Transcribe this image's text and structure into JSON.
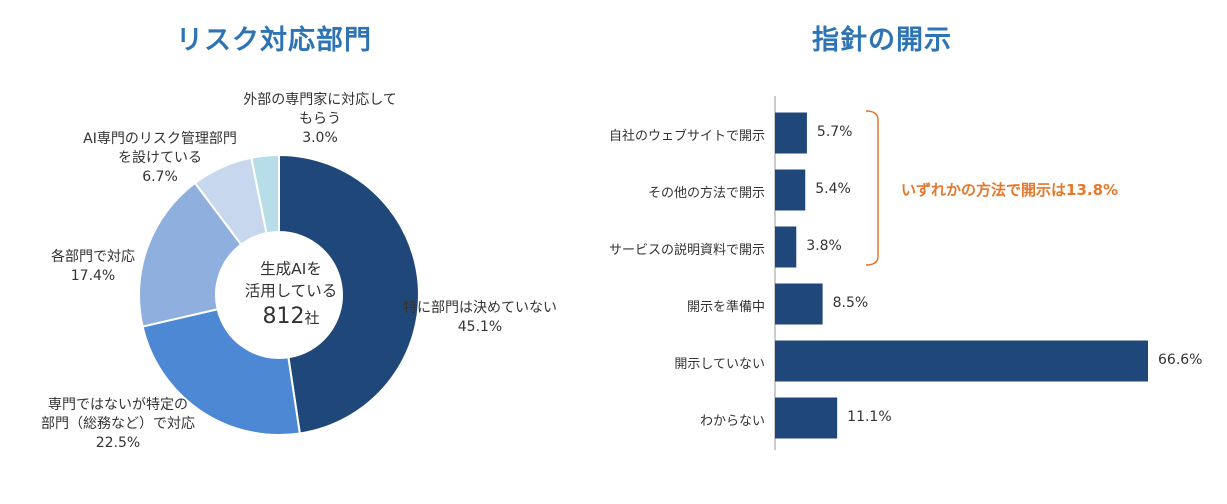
{
  "chart_data": [
    {
      "type": "pie",
      "title": "リスク対応部門",
      "center_label": {
        "line1": "生成AIを",
        "line2": "活用している",
        "count": "812",
        "unit": "社"
      },
      "slices": [
        {
          "label_lines": [
            "特に部門は決めていない"
          ],
          "value": 45.1,
          "value_label": "45.1%",
          "color": "#1f477a"
        },
        {
          "label_lines": [
            "専門ではないが特定の",
            "部門（総務など）で対応"
          ],
          "value": 22.5,
          "value_label": "22.5%",
          "color": "#4d88d4"
        },
        {
          "label_lines": [
            "各部門で対応"
          ],
          "value": 17.4,
          "value_label": "17.4%",
          "color": "#8fb0df"
        },
        {
          "label_lines": [
            "AI専門のリスク管理部門",
            "を設けている"
          ],
          "value": 6.7,
          "value_label": "6.7%",
          "color": "#c7d7ee"
        },
        {
          "label_lines": [
            "外部の専門家に対応して",
            "もらう"
          ],
          "value": 3.0,
          "value_label": "3.0%",
          "color": "#b7dde8"
        }
      ]
    },
    {
      "type": "bar",
      "orientation": "horizontal",
      "title": "指針の開示",
      "categories": [
        "自社のウェブサイトで開示",
        "その他の方法で開示",
        "サービスの説明資料で開示",
        "開示を準備中",
        "開示していない",
        "わからない"
      ],
      "values": [
        5.7,
        5.4,
        3.8,
        8.5,
        66.6,
        11.1
      ],
      "value_labels": [
        "5.7%",
        "5.4%",
        "3.8%",
        "8.5%",
        "66.6%",
        "11.1%"
      ],
      "color": "#1f477a",
      "annotation": "いずれかの方法で開示は13.8%",
      "annotation_color": "#e6782b"
    }
  ]
}
